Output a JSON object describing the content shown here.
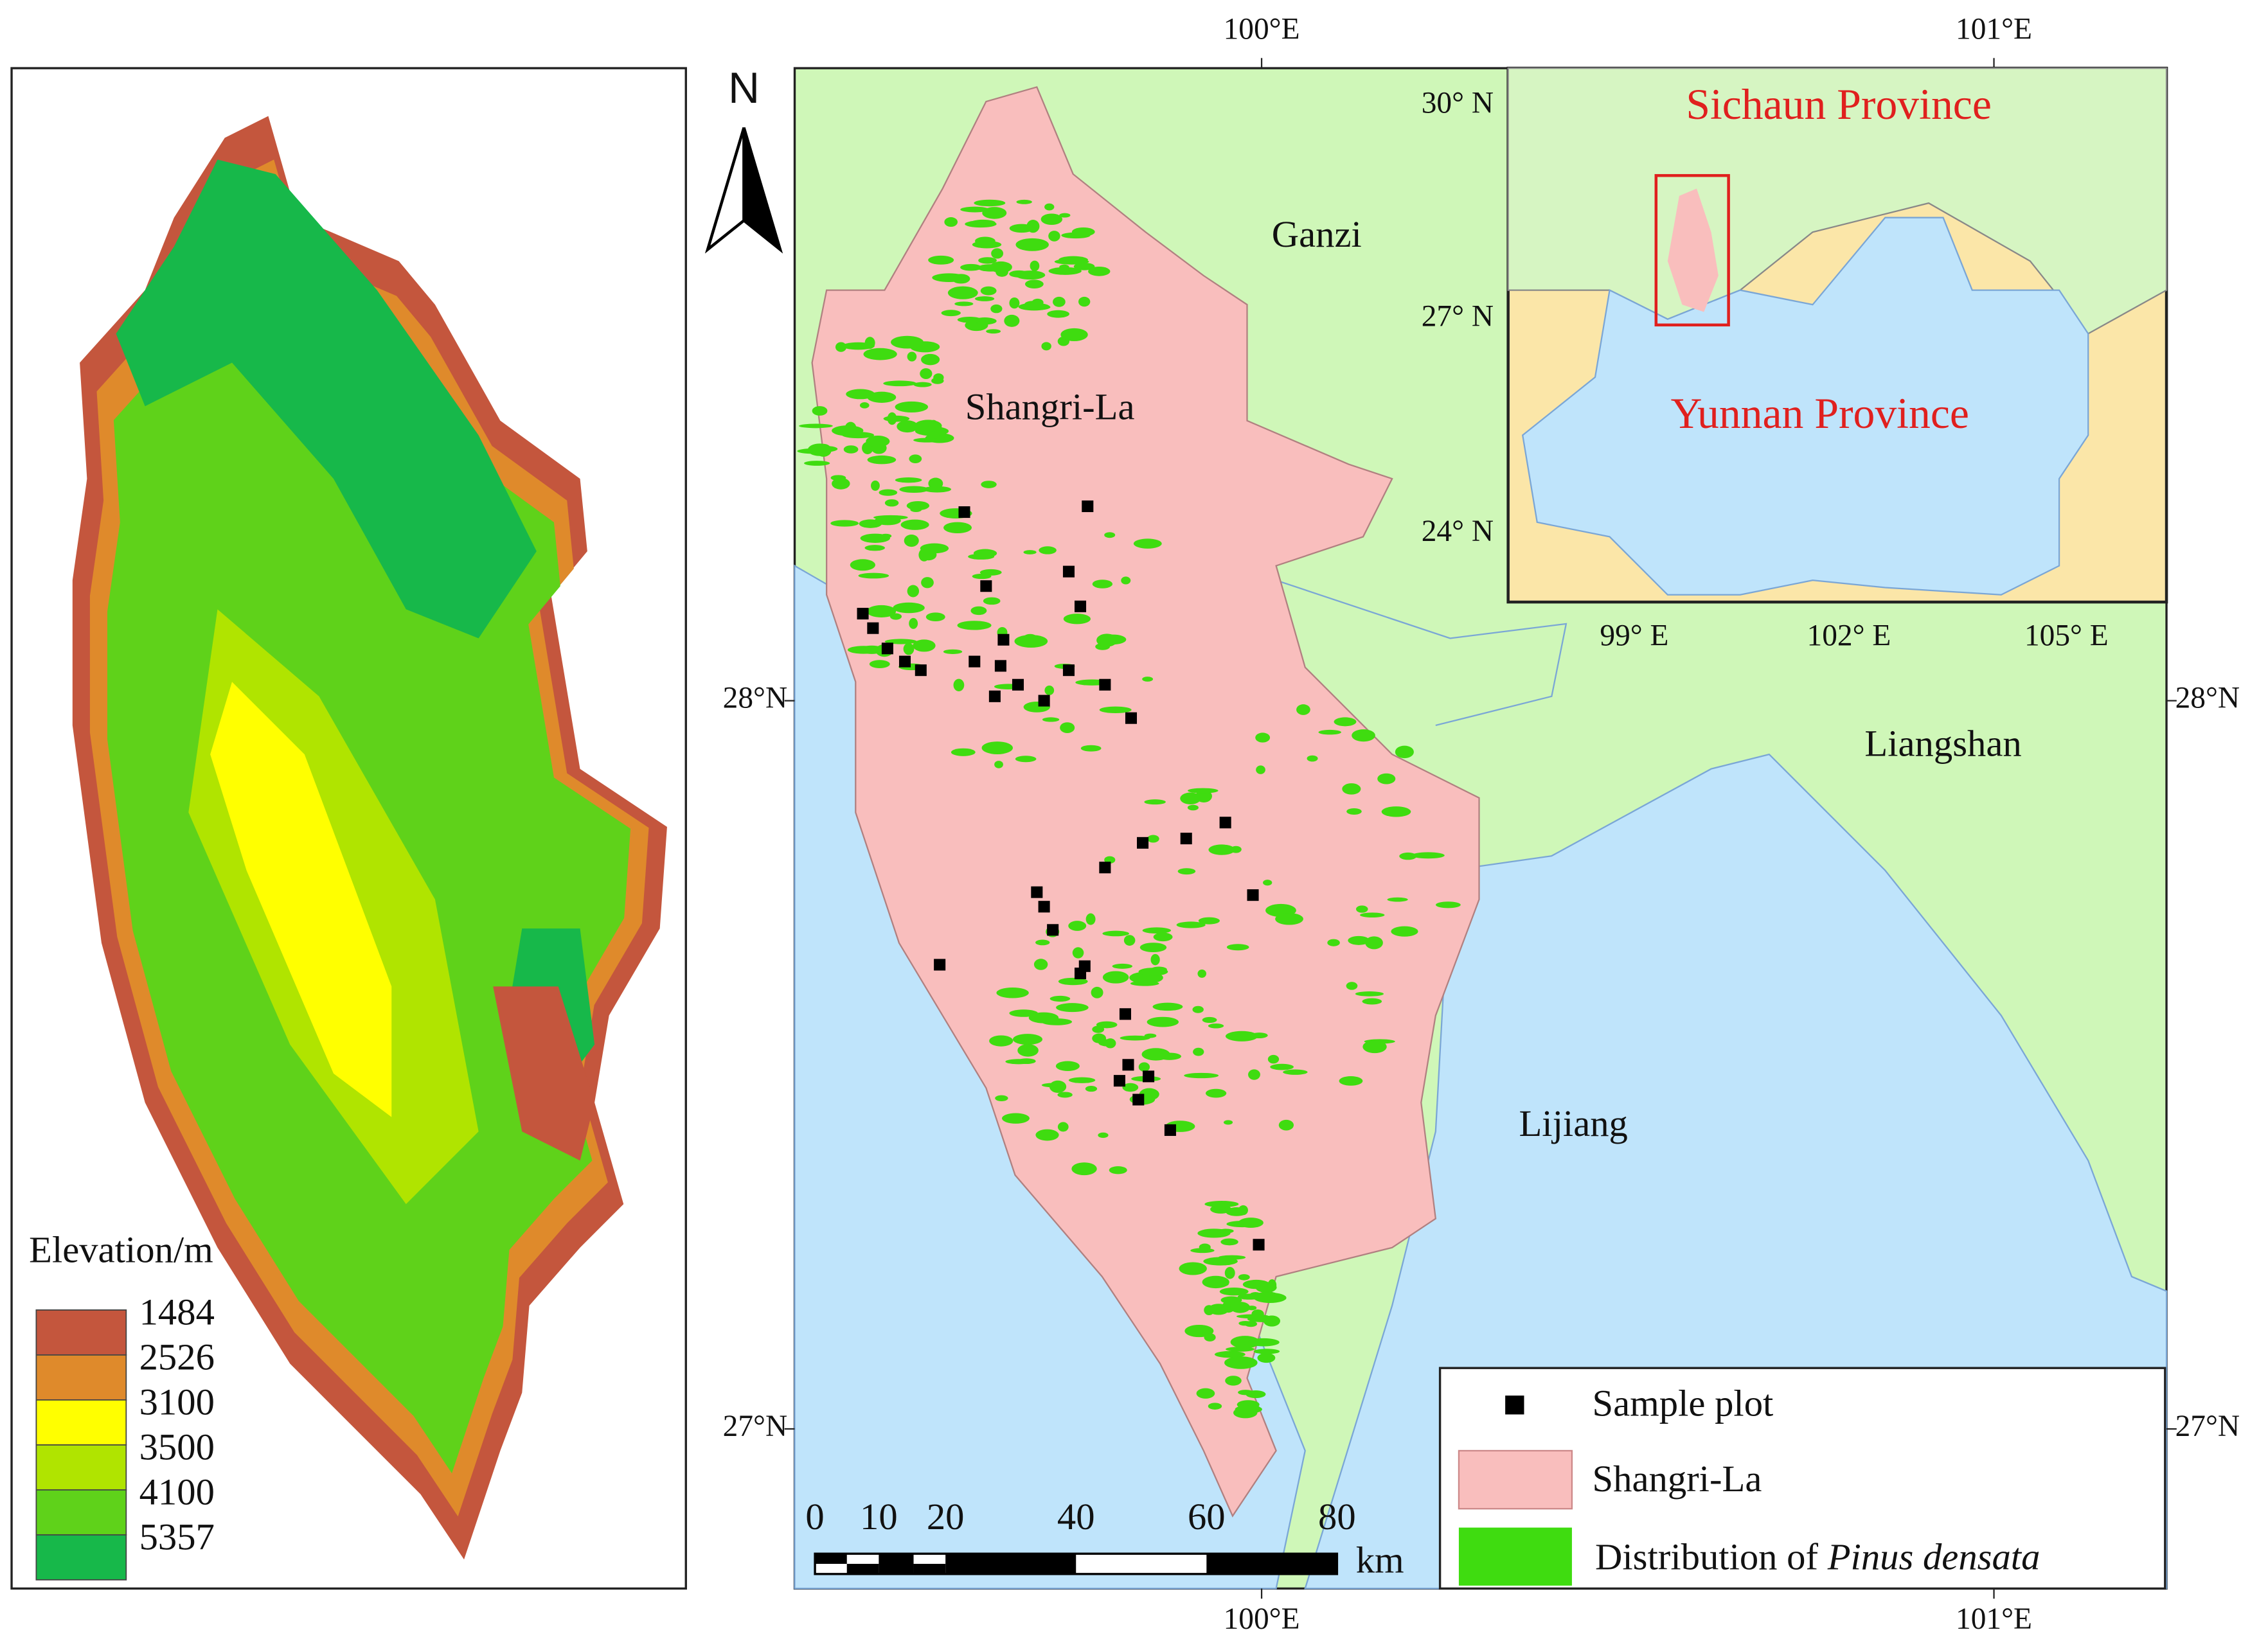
{
  "elevation_legend": {
    "title": "Elevation/m",
    "classes": [
      {
        "label": "1484",
        "color": "#c4563d"
      },
      {
        "label": "2526",
        "color": "#df8a2b"
      },
      {
        "label": "3100",
        "color": "#ffff00"
      },
      {
        "label": "3500",
        "color": "#b0e400"
      },
      {
        "label": "4100",
        "color": "#5fd21a"
      },
      {
        "label": "5357",
        "color": "#17b84a"
      }
    ]
  },
  "map": {
    "north": "N",
    "regions": [
      "Ganzi",
      "Shangri-La",
      "Liangshan",
      "Lijiang"
    ],
    "top_ticks": [
      "100°E",
      "101°E"
    ],
    "bottom_ticks": [
      "100°E",
      "101°E"
    ],
    "left_ticks": [
      "28°N",
      "27°N"
    ],
    "right_ticks": [
      "28°N",
      "27°N"
    ]
  },
  "inset": {
    "labels": [
      "Sichaun Province",
      "Yunnan Province"
    ],
    "lat_ticks": [
      "30° N",
      "27° N",
      "24° N"
    ],
    "lon_ticks": [
      "99° E",
      "102° E",
      "105° E"
    ]
  },
  "scale_bar": {
    "ticks": [
      "0",
      "10",
      "20",
      "40",
      "60",
      "80"
    ],
    "unit": "km"
  },
  "legend": {
    "items": [
      "Sample plot",
      "Shangri-La"
    ],
    "distribution": "Distribution of ",
    "species": "Pinus densata"
  }
}
